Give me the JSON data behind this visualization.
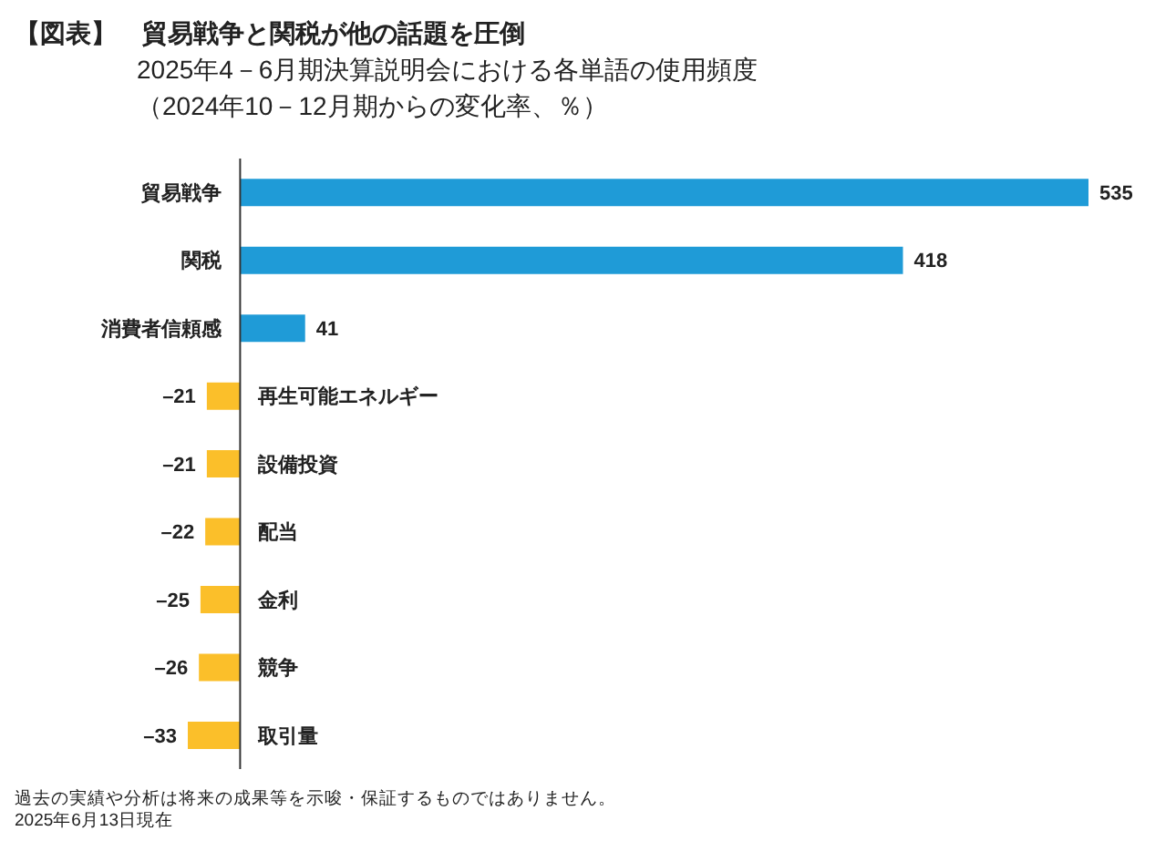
{
  "chart_data": {
    "type": "bar",
    "orientation": "horizontal",
    "title": "【図表】　貿易戦争と関税が他の話題を圧倒",
    "subtitle": "2025年4－6月期決算説明会における各単語の使用頻度（2024年10－12月期からの変化率、％）",
    "categories": [
      "貿易戦争",
      "関税",
      "消費者信頼感",
      "再生可能エネルギー",
      "設備投資",
      "配当",
      "金利",
      "競争",
      "取引量"
    ],
    "values": [
      535,
      418,
      41,
      -21,
      -21,
      -22,
      -25,
      -26,
      -33
    ],
    "value_labels": [
      "535",
      "418",
      "41",
      "–21",
      "–21",
      "–22",
      "–25",
      "–26",
      "–33"
    ],
    "colors": [
      "#1f9bd7",
      "#1f9bd7",
      "#1f9bd7",
      "#fbbf2a",
      "#fbbf2a",
      "#fbbf2a",
      "#fbbf2a",
      "#fbbf2a",
      "#fbbf2a"
    ],
    "grid": false,
    "legend": false,
    "annotations": [
      "過去の実績や分析は将来の成果等を示唆・保証するものではありません。",
      "2025年6月13日現在"
    ]
  }
}
